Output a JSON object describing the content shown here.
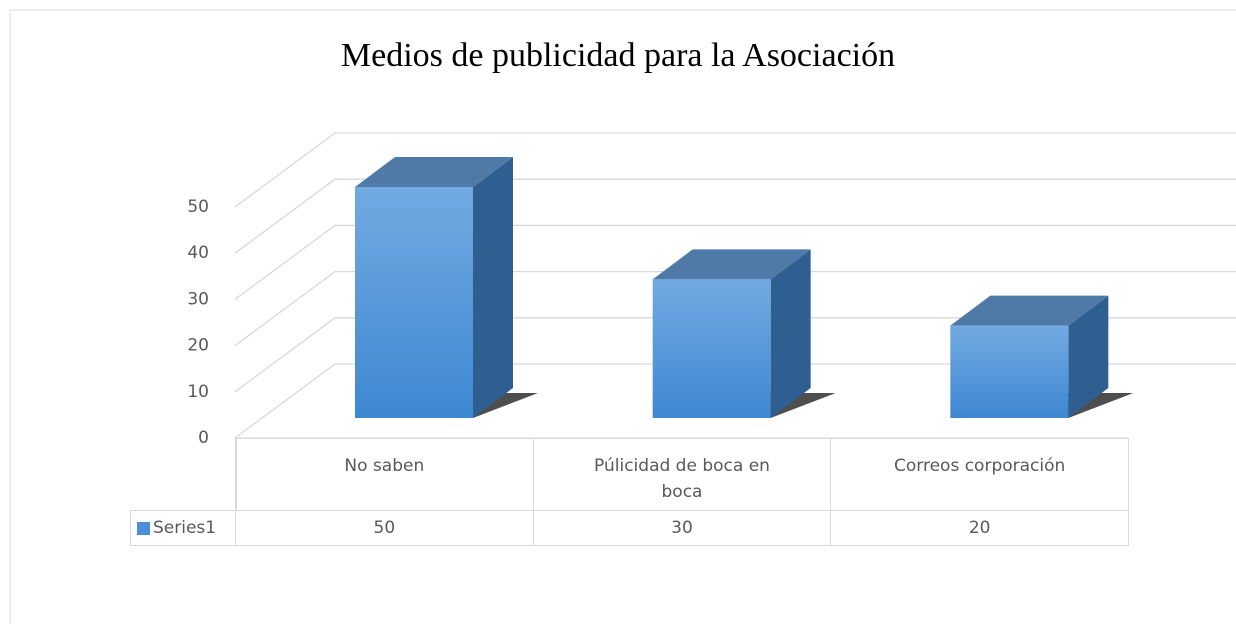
{
  "chart_data": {
    "type": "bar",
    "title": "Medios de publicidad para la Asociación",
    "categories": [
      "No saben",
      "Púlicidad de boca en boca",
      "Correos corporación"
    ],
    "series": [
      {
        "name": "Series1",
        "color": "#4a90d9",
        "values": [
          50,
          30,
          20
        ]
      }
    ],
    "ylim": [
      0,
      50
    ],
    "yticks": [
      0,
      10,
      20,
      30,
      40,
      50
    ],
    "grid": true,
    "legend": "bottom-left"
  }
}
